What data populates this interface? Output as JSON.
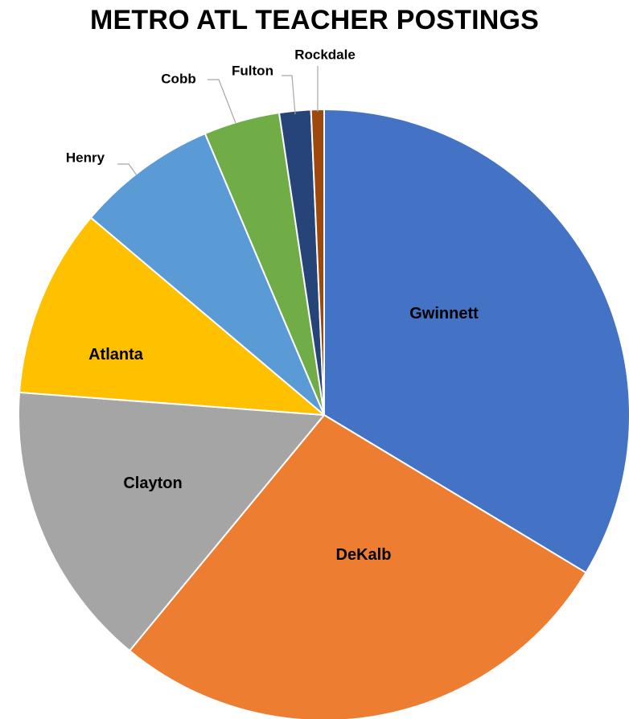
{
  "chart_data": {
    "type": "pie",
    "title": "METRO ATL TEACHER POSTINGS",
    "slices": [
      {
        "label": "Gwinnett",
        "value": 34.3,
        "color": "#4472C4",
        "label_position": "inside"
      },
      {
        "label": "DeKalb",
        "value": 27.9,
        "color": "#ED7D31",
        "label_position": "inside"
      },
      {
        "label": "Clayton",
        "value": 15.5,
        "color": "#A5A5A5",
        "label_position": "inside"
      },
      {
        "label": "Atlanta",
        "value": 10.2,
        "color": "#FFC000",
        "label_position": "inside"
      },
      {
        "label": "Henry",
        "value": 7.6,
        "color": "#5B9BD5",
        "label_position": "outside"
      },
      {
        "label": "Cobb",
        "value": 4.1,
        "color": "#70AD47",
        "label_position": "outside"
      },
      {
        "label": "Fulton",
        "value": 1.7,
        "color": "#264478",
        "label_position": "outside"
      },
      {
        "label": "Rockdale",
        "value": 0.7,
        "color": "#9E480E",
        "label_position": "outside"
      }
    ],
    "start_angle": "12 o'clock, clockwise",
    "legend": "none",
    "data_labels": "category names"
  }
}
